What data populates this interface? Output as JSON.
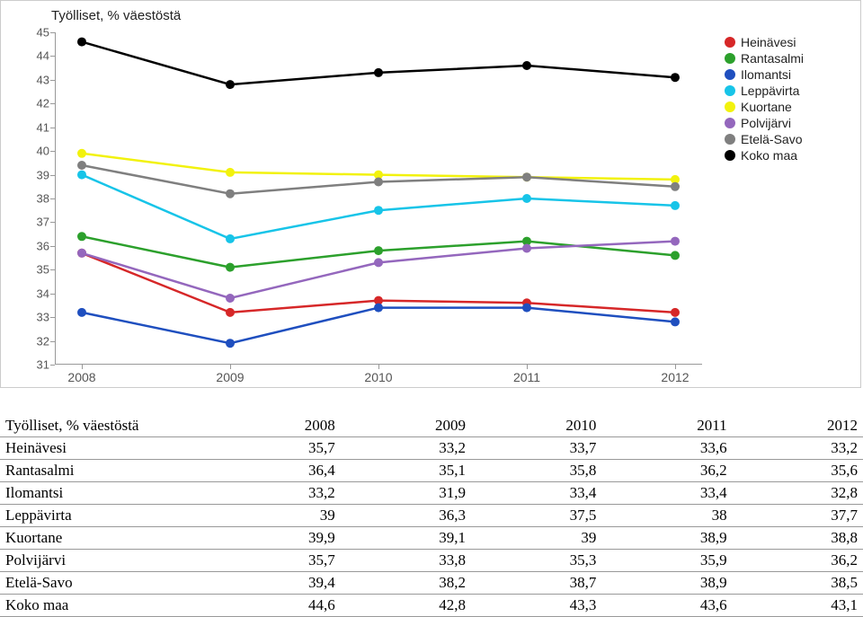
{
  "chart": {
    "title": "Työlliset, % väestöstä",
    "title_fontsize": 15,
    "background_color": "#ffffff",
    "border_color": "#cccccc",
    "axis_color": "#999999",
    "tick_label_color": "#555555",
    "tick_fontsize": 13,
    "type": "line",
    "xlim": [
      2008,
      2012
    ],
    "ylim": [
      31,
      45
    ],
    "ytick_step": 1,
    "categories": [
      "2008",
      "2009",
      "2010",
      "2011",
      "2012"
    ],
    "line_width": 2.5,
    "marker_radius": 5,
    "series": [
      {
        "name": "Heinävesi",
        "color": "#d62728",
        "values": [
          35.7,
          33.2,
          33.7,
          33.6,
          33.2
        ]
      },
      {
        "name": "Rantasalmi",
        "color": "#2ca02c",
        "values": [
          36.4,
          35.1,
          35.8,
          36.2,
          35.6
        ]
      },
      {
        "name": "Ilomantsi",
        "color": "#1f4fbf",
        "values": [
          33.2,
          31.9,
          33.4,
          33.4,
          32.8
        ]
      },
      {
        "name": "Leppävirta",
        "color": "#17c4e8",
        "values": [
          39.0,
          36.3,
          37.5,
          38.0,
          37.7
        ]
      },
      {
        "name": "Kuortane",
        "color": "#f2f20d",
        "values": [
          39.9,
          39.1,
          39.0,
          38.9,
          38.8
        ]
      },
      {
        "name": "Polvijärvi",
        "color": "#9467bd",
        "values": [
          35.7,
          33.8,
          35.3,
          35.9,
          36.2
        ]
      },
      {
        "name": "Etelä-Savo",
        "color": "#7f7f7f",
        "values": [
          39.4,
          38.2,
          38.7,
          38.9,
          38.5
        ]
      },
      {
        "name": "Koko maa",
        "color": "#000000",
        "values": [
          44.6,
          42.8,
          43.3,
          43.6,
          43.1
        ]
      }
    ]
  },
  "table": {
    "header_label": "Työlliset, % väestöstä",
    "columns": [
      "2008",
      "2009",
      "2010",
      "2011",
      "2012"
    ],
    "rows": [
      {
        "label": "Heinävesi",
        "cells": [
          "35,7",
          "33,2",
          "33,7",
          "33,6",
          "33,2"
        ]
      },
      {
        "label": "Rantasalmi",
        "cells": [
          "36,4",
          "35,1",
          "35,8",
          "36,2",
          "35,6"
        ]
      },
      {
        "label": "Ilomantsi",
        "cells": [
          "33,2",
          "31,9",
          "33,4",
          "33,4",
          "32,8"
        ]
      },
      {
        "label": "Leppävirta",
        "cells": [
          "39",
          "36,3",
          "37,5",
          "38",
          "37,7"
        ]
      },
      {
        "label": "Kuortane",
        "cells": [
          "39,9",
          "39,1",
          "39",
          "38,9",
          "38,8"
        ]
      },
      {
        "label": "Polvijärvi",
        "cells": [
          "35,7",
          "33,8",
          "35,3",
          "35,9",
          "36,2"
        ]
      },
      {
        "label": "Etelä-Savo",
        "cells": [
          "39,4",
          "38,2",
          "38,7",
          "38,9",
          "38,5"
        ]
      },
      {
        "label": "Koko maa",
        "cells": [
          "44,6",
          "42,8",
          "43,3",
          "43,6",
          "43,1"
        ]
      }
    ]
  }
}
